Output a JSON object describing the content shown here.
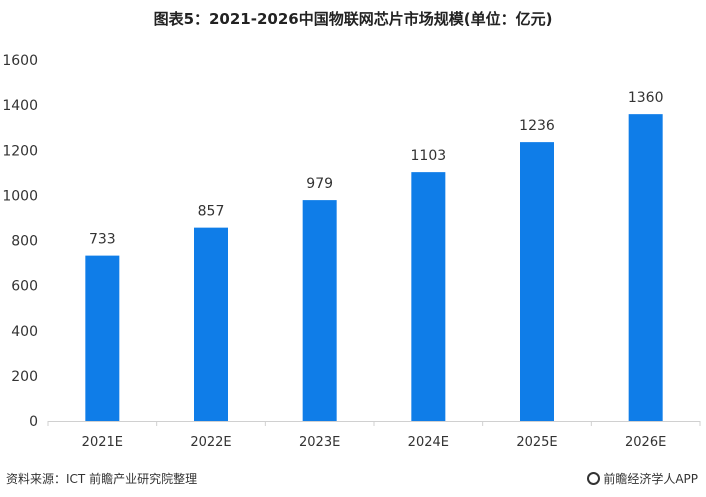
{
  "chart_data": {
    "type": "bar",
    "title": "图表5：2021-2026中国物联网芯片市场规模(单位：亿元)",
    "categories": [
      "2021E",
      "2022E",
      "2023E",
      "2024E",
      "2025E",
      "2026E"
    ],
    "values": [
      733,
      857,
      979,
      1103,
      1236,
      1360
    ],
    "data_labels": [
      "733",
      "857",
      "979",
      "1103",
      "1236",
      "1360"
    ],
    "ylim": [
      0,
      1600
    ],
    "yticks": [
      0,
      200,
      400,
      600,
      800,
      1000,
      1200,
      1400,
      1600
    ],
    "grid": false,
    "bar_color": "#0f7de8"
  },
  "footer": {
    "source": "资料来源：ICT 前瞻产业研究院整理",
    "brand": "前瞻经济学人APP"
  }
}
